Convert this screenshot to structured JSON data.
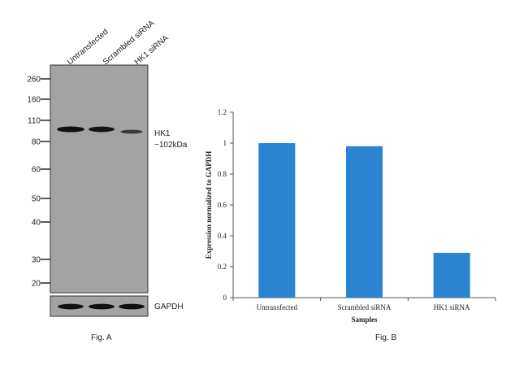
{
  "blot": {
    "lanes": [
      "Untransfected",
      "Scrambled siRNA",
      "HK1 siRNA"
    ],
    "markers": [
      "260",
      "160",
      "110",
      "80",
      "60",
      "50",
      "40",
      "30",
      "20"
    ],
    "target_label": "HK1",
    "target_size": "~102kDa",
    "loading_label": "GAPDH",
    "band_intensity": [
      1.0,
      0.95,
      0.45
    ]
  },
  "fig_a_label": "Fig. A",
  "fig_b_label": "Fig. B",
  "chart_data": {
    "type": "bar",
    "categories": [
      "Untransfected",
      "Scrambled siRNA",
      "HK1 siRNA"
    ],
    "values": [
      1.0,
      0.98,
      0.29
    ],
    "xlabel": "Samples",
    "ylabel": "Expression normalized to GAPDH",
    "ylim": [
      0,
      1.2
    ],
    "yticks": [
      "0",
      "0.2",
      "0.4",
      "0.6",
      "0.8",
      "1",
      "1.2"
    ],
    "bar_color": "#2a84d2",
    "grid": false
  }
}
